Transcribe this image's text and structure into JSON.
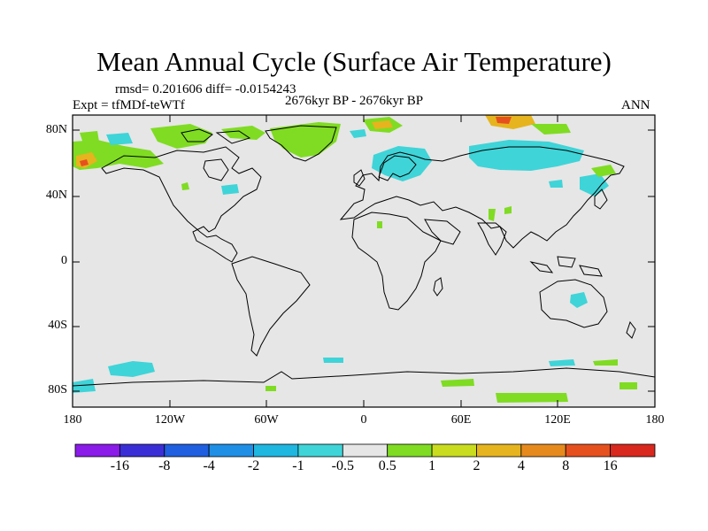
{
  "title": "Mean Annual Cycle (Surface Air Temperature)",
  "stats": "rmsd= 0.201606  diff= -0.0154243",
  "experiment": "Expt = tfMDf-teWTf",
  "period": "2676kyr BP - 2676kyr BP",
  "season": "ANN",
  "lat_ticks": [
    "80N",
    "40N",
    "0",
    "40S",
    "80S"
  ],
  "lon_ticks": [
    "180",
    "120W",
    "60W",
    "0",
    "60E",
    "120E",
    "180"
  ],
  "colorbar": {
    "labels": [
      "-16",
      "-8",
      "-4",
      "-2",
      "-1",
      "-0.5",
      "0.5",
      "1",
      "2",
      "4",
      "8",
      "16"
    ],
    "colors": [
      "#8a1be8",
      "#3a2fd6",
      "#1f5fe0",
      "#1f8fe6",
      "#1fb6e0",
      "#3fd4d8",
      "#e6e6e6",
      "#7fdc22",
      "#c9dc1e",
      "#e6b41e",
      "#e68a1e",
      "#e6501e",
      "#d9281e"
    ]
  },
  "map": {
    "lat_range": [
      -90,
      90
    ],
    "lon_range": [
      -180,
      180
    ],
    "background": "#e6e6e6"
  }
}
